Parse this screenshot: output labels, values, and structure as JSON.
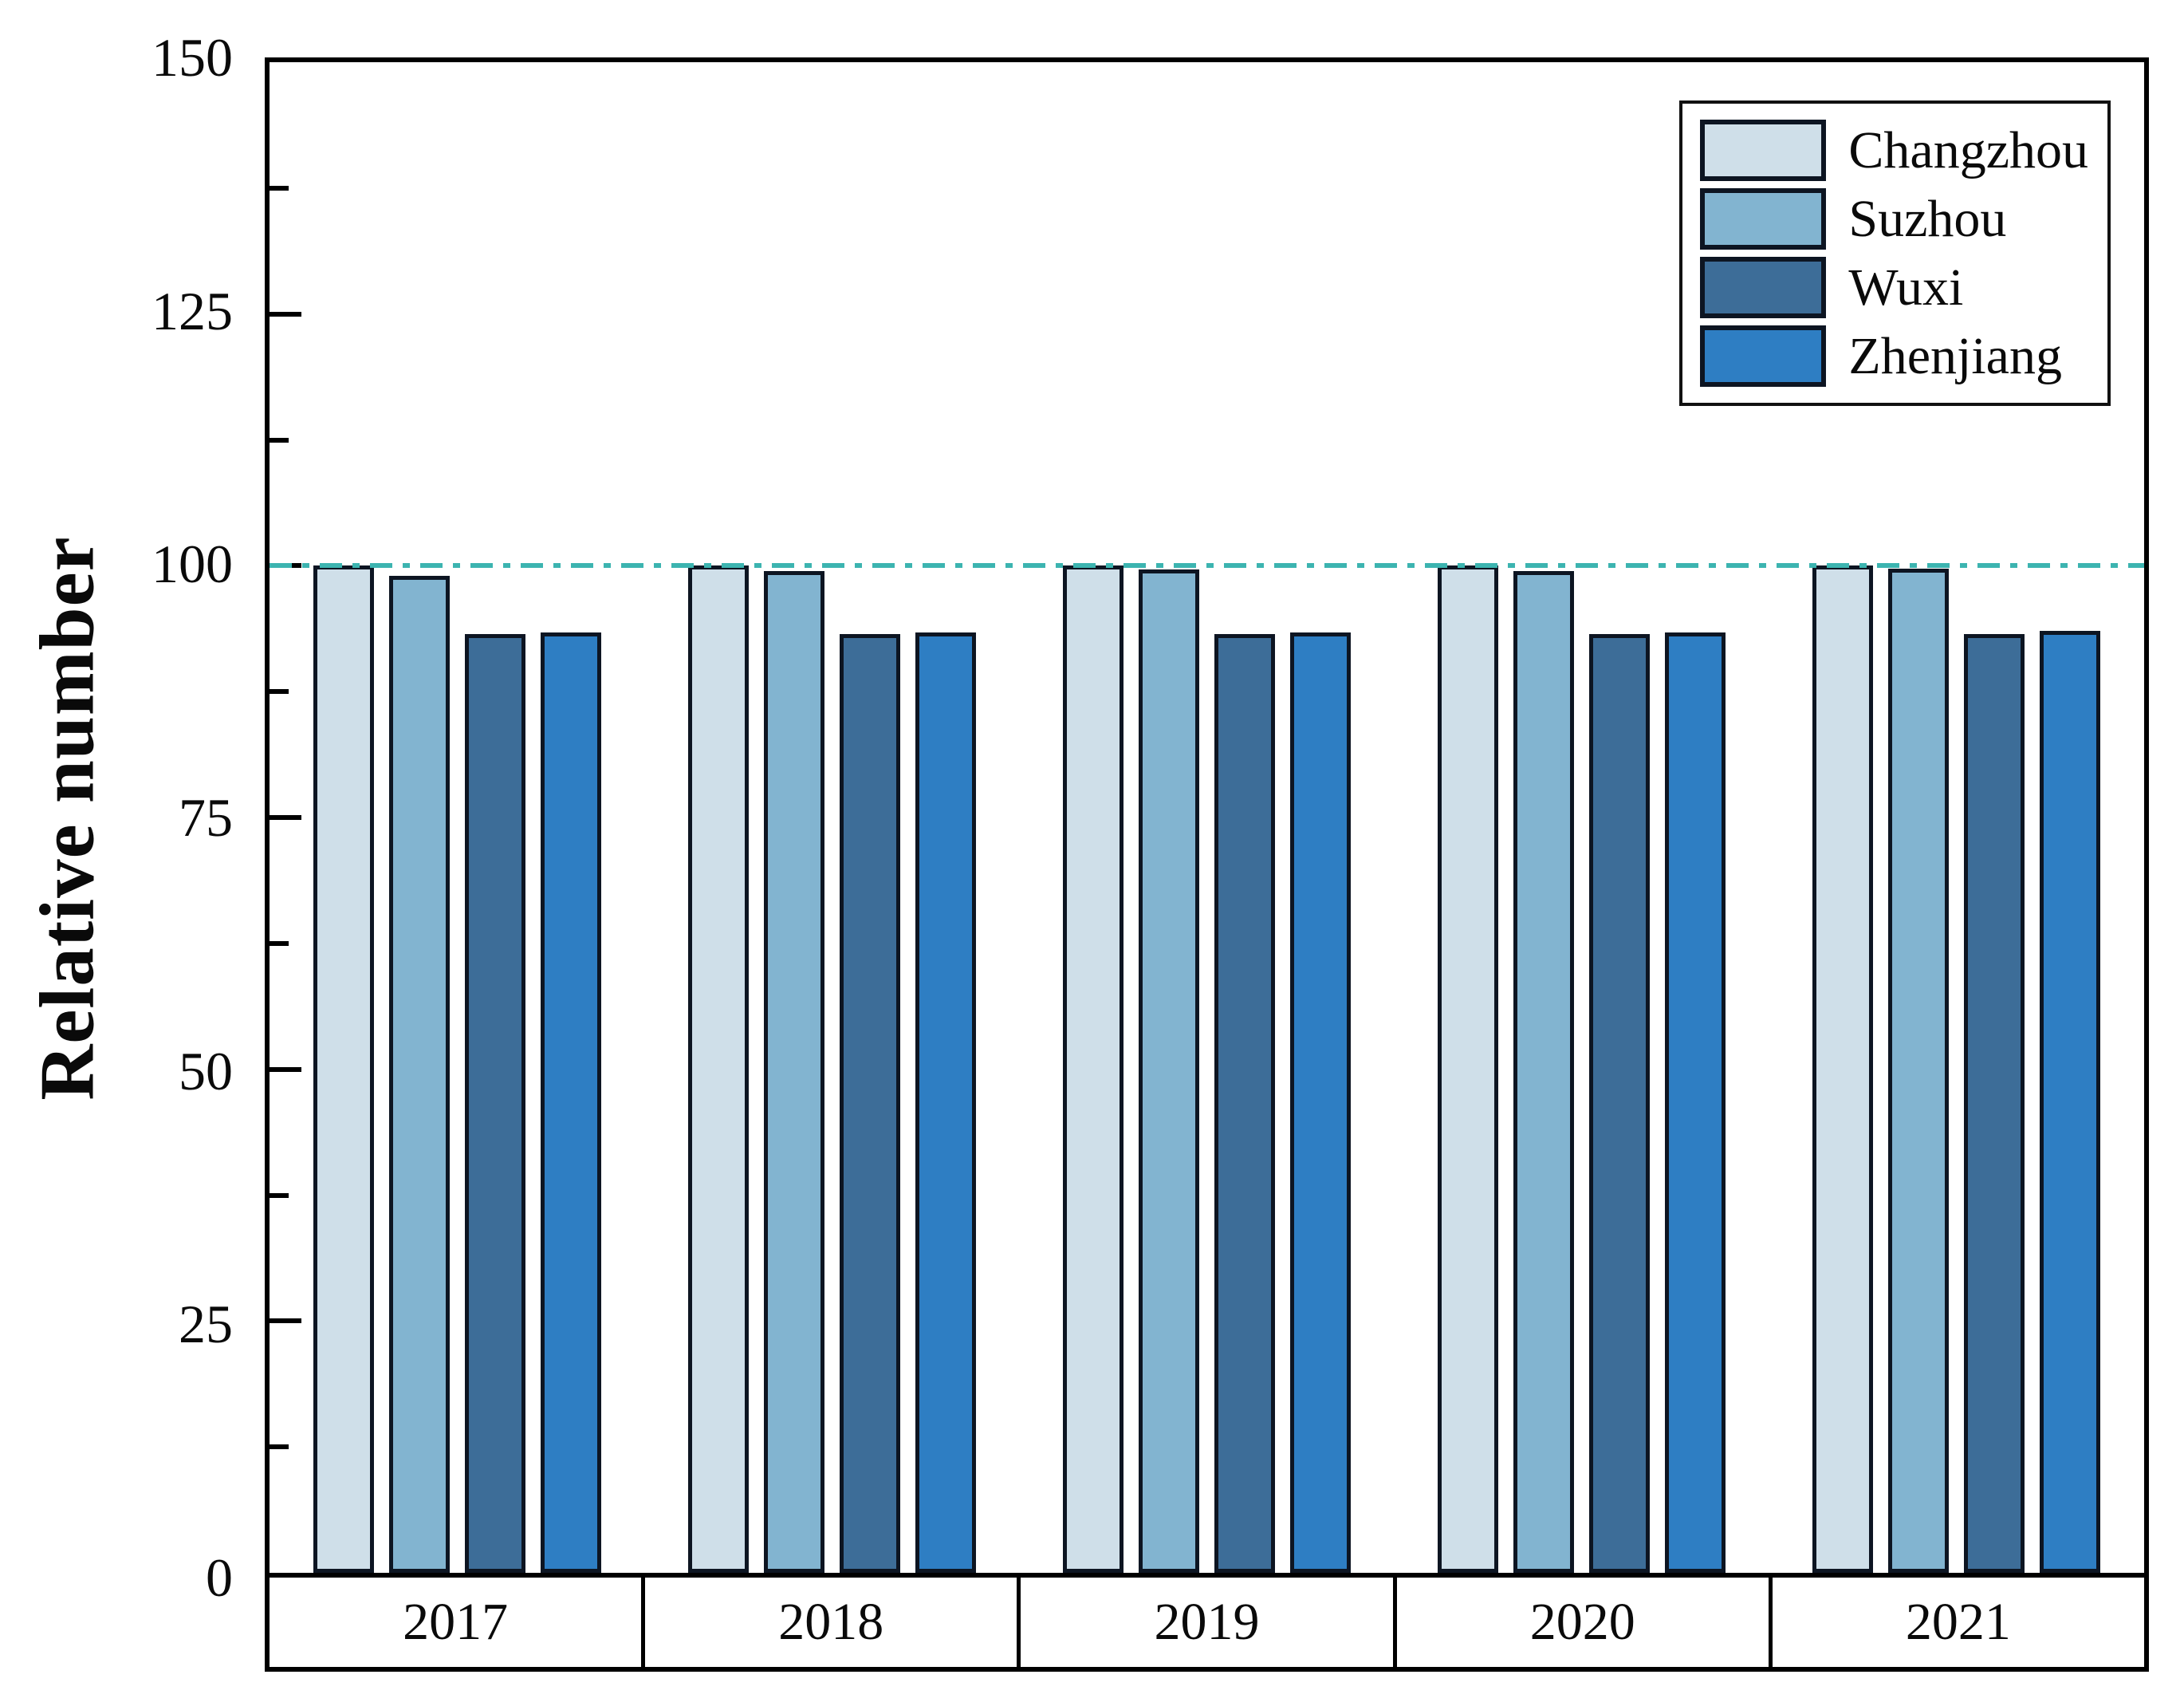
{
  "chart_data": {
    "type": "bar",
    "title": "",
    "xlabel": "",
    "ylabel": "Relative number",
    "ylim": [
      0,
      150
    ],
    "yticks_major": [
      0,
      25,
      50,
      75,
      100,
      125,
      150
    ],
    "ytick_minor_step": 12.5,
    "grid": false,
    "categories": [
      "2017",
      "2018",
      "2019",
      "2020",
      "2021"
    ],
    "series": [
      {
        "name": "Changzhou",
        "color": "#cfdfe9",
        "values": [
          100,
          100,
          100,
          100,
          100
        ]
      },
      {
        "name": "Suzhou",
        "color": "#82b4d0",
        "values": [
          99.0,
          99.5,
          99.6,
          99.5,
          99.7
        ]
      },
      {
        "name": "Wuxi",
        "color": "#3d6d98",
        "values": [
          93.2,
          93.2,
          93.2,
          93.2,
          93.2
        ]
      },
      {
        "name": "Zhenjiang",
        "color": "#2e7ec3",
        "values": [
          93.4,
          93.4,
          93.4,
          93.4,
          93.5
        ]
      }
    ],
    "reference_line": {
      "y": 100,
      "color": "#3cb4b0",
      "style": "dash-dot"
    },
    "legend": {
      "position": "top-right",
      "items": [
        "Changzhou",
        "Suzhou",
        "Wuxi",
        "Zhenjiang"
      ]
    },
    "bar_edge_color": "#0d1522",
    "axis_color": "#000000"
  }
}
